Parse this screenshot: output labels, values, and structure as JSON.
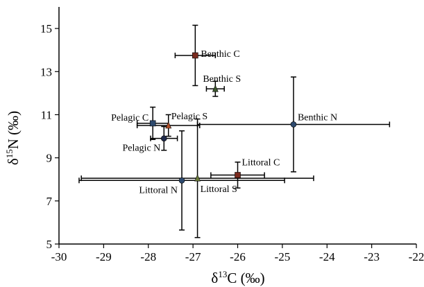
{
  "chart_data": {
    "type": "scatter",
    "title": "",
    "xlabel": {
      "prefix": "δ",
      "sup": "13",
      "suffix": "C (‰)"
    },
    "ylabel": {
      "prefix": "δ",
      "sup": "15",
      "suffix": "N (‰)"
    },
    "xlim": [
      -30,
      -22
    ],
    "ylim": [
      5,
      16
    ],
    "xticks": [
      -30,
      -29,
      -28,
      -27,
      -26,
      -25,
      -24,
      -23,
      -22
    ],
    "yticks": [
      5,
      7,
      9,
      11,
      13,
      15
    ],
    "grid": false,
    "legend": "none",
    "points": [
      {
        "label": "Benthic C",
        "x": -26.95,
        "y": 13.75,
        "xerr": 0.45,
        "yerr": 1.4,
        "color": "#7a2a1e",
        "marker": "square"
      },
      {
        "label": "Benthic S",
        "x": -26.5,
        "y": 12.2,
        "xerr": 0.2,
        "yerr": 0.35,
        "color": "#3e5a2e",
        "marker": "triangle"
      },
      {
        "label": "Benthic N",
        "x": -24.75,
        "y": 10.55,
        "xerr": 2.15,
        "yerr": 2.2,
        "color": "#2e4a6e",
        "marker": "circle"
      },
      {
        "label": "Pelagic C",
        "x": -27.9,
        "y": 10.6,
        "xerr": 0.35,
        "yerr": 0.75,
        "color": "#2e4a6e",
        "marker": "square"
      },
      {
        "label": "Pelagic S",
        "x": -27.55,
        "y": 10.5,
        "xerr": 0.7,
        "yerr": 0.5,
        "color": "#b0502a",
        "marker": "triangle"
      },
      {
        "label": "Pelagic N",
        "x": -27.65,
        "y": 9.9,
        "xerr": 0.3,
        "yerr": 0.55,
        "color": "#1f2a4a",
        "marker": "circle"
      },
      {
        "label": "Littoral C",
        "x": -26.0,
        "y": 8.2,
        "xerr": 0.6,
        "yerr": 0.6,
        "color": "#7a2a1e",
        "marker": "square"
      },
      {
        "label": "Littoral S",
        "x": -26.9,
        "y": 8.05,
        "xerr": 2.6,
        "yerr": 2.75,
        "color": "#6a7a3a",
        "marker": "triangle"
      },
      {
        "label": "Littoral N",
        "x": -27.25,
        "y": 7.95,
        "xerr": 2.3,
        "yerr": 2.3,
        "color": "#2e4a6e",
        "marker": "circle"
      }
    ]
  }
}
